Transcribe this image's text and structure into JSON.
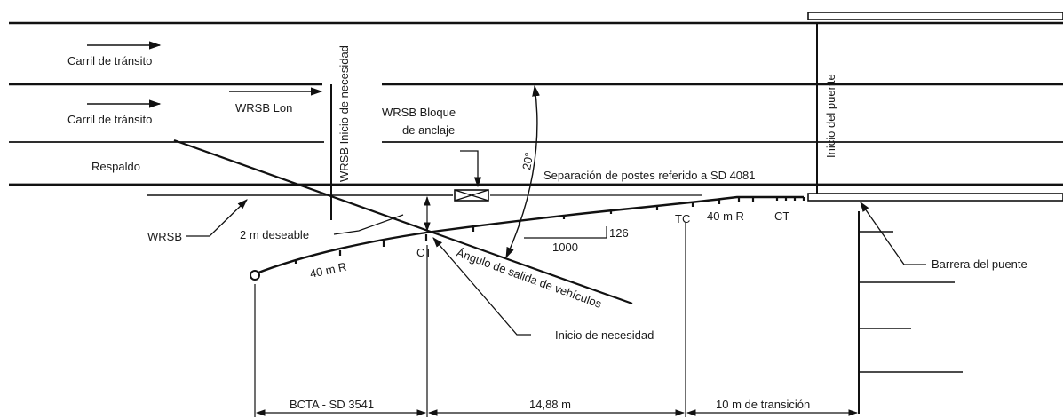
{
  "labels": {
    "lane1": "Carril de tránsito",
    "lane2": "Carril de tránsito",
    "shoulder": "Respaldo",
    "wrsb_lon": "WRSB Lon",
    "need_start_vertical": "WRSB Inicio de necesidad",
    "anchor_block_line1": "WRSB Bloque",
    "anchor_block_line2": "de anclaje",
    "angle": "20°",
    "post_spacing": "Separación de postes referido a SD 4081",
    "bridge_start": "Inicio del puente",
    "wrsb": "WRSB",
    "desirable": "2 m deseable",
    "ct_left": "CT",
    "radius_left": "40 m  R",
    "departure_angle": "Ángulo de salida de vehículos",
    "slope_top": "126",
    "slope_bottom": "1000",
    "tc": "TC",
    "radius_right": "40 m  R",
    "ct_right": "CT",
    "bridge_barrier": "Barrera del puente",
    "need_start": "Inicio de necesidad",
    "dim1": "BCTA - SD 3541",
    "dim2": "14,88 m",
    "dim3": "10 m de transición"
  }
}
